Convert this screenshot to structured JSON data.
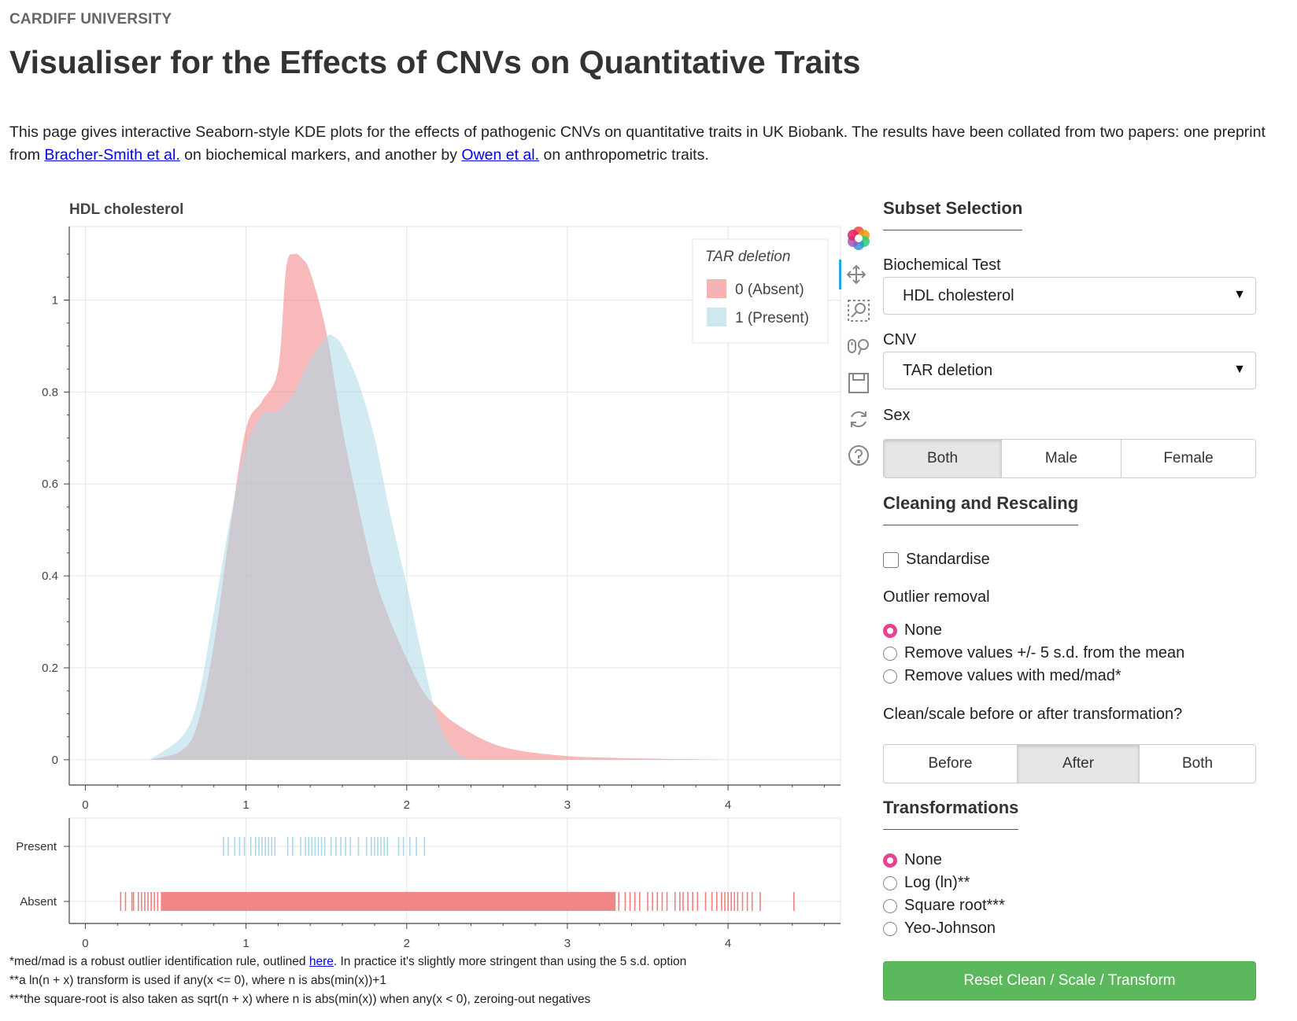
{
  "header": {
    "org": "CARDIFF UNIVERSITY",
    "title": "Visualiser for the Effects of CNVs on Quantitative Traits"
  },
  "intro": {
    "text1": "This page gives interactive Seaborn-style KDE plots for the effects of pathogenic CNVs on quantitative traits in UK Biobank. The results have been collated from two papers: one preprint from ",
    "link1": "Bracher-Smith et al.",
    "text2": " on biochemical markers, and another by ",
    "link2": "Owen et al.",
    "text3": " on anthropometric traits."
  },
  "chart_data": [
    {
      "type": "area",
      "title": "HDL cholesterol",
      "xlim": [
        -0.1,
        4.7
      ],
      "ylim": [
        -0.055,
        1.16
      ],
      "x_ticks": [
        "0",
        "1",
        "2",
        "3",
        "4"
      ],
      "y_ticks": [
        "0",
        "0.2",
        "0.4",
        "0.6",
        "0.8",
        "1"
      ],
      "grid": true,
      "legend": {
        "title": "TAR deletion",
        "placement": "top-right",
        "entries": [
          "0 (Absent)",
          "1 (Present)"
        ]
      },
      "series": [
        {
          "name": "0 (Absent)",
          "color": "#f08080",
          "x": [
            0.4,
            0.6,
            0.7,
            0.8,
            0.9,
            1.0,
            1.1,
            1.2,
            1.25,
            1.3,
            1.35,
            1.4,
            1.5,
            1.6,
            1.7,
            1.8,
            1.9,
            2.0,
            2.1,
            2.2,
            2.3,
            2.5,
            2.7,
            3.0,
            3.3,
            3.6,
            4.0
          ],
          "y": [
            0.0,
            0.02,
            0.08,
            0.25,
            0.5,
            0.72,
            0.78,
            0.85,
            1.07,
            1.1,
            1.09,
            1.06,
            0.93,
            0.72,
            0.55,
            0.4,
            0.3,
            0.22,
            0.15,
            0.11,
            0.08,
            0.04,
            0.02,
            0.008,
            0.004,
            0.002,
            0.0
          ]
        },
        {
          "name": "1 (Present)",
          "color": "#add8e6",
          "x": [
            0.4,
            0.6,
            0.7,
            0.8,
            0.9,
            1.0,
            1.1,
            1.2,
            1.3,
            1.4,
            1.5,
            1.55,
            1.6,
            1.7,
            1.8,
            1.9,
            2.0,
            2.1,
            2.2,
            2.3,
            2.4
          ],
          "y": [
            0.0,
            0.05,
            0.13,
            0.32,
            0.52,
            0.68,
            0.75,
            0.76,
            0.8,
            0.87,
            0.92,
            0.92,
            0.9,
            0.82,
            0.7,
            0.53,
            0.38,
            0.22,
            0.08,
            0.02,
            0.0
          ]
        }
      ]
    },
    {
      "type": "scatter",
      "subtype": "rug",
      "xlim": [
        -0.1,
        4.7
      ],
      "x_ticks": [
        "0",
        "1",
        "2",
        "3",
        "4"
      ],
      "categories": [
        "Present",
        "Absent"
      ],
      "series": [
        {
          "name": "Present",
          "color": "#add8e6",
          "x": [
            0.86,
            0.89,
            0.93,
            0.96,
            0.99,
            1.03,
            1.06,
            1.08,
            1.1,
            1.12,
            1.14,
            1.16,
            1.18,
            1.26,
            1.29,
            1.34,
            1.37,
            1.39,
            1.41,
            1.43,
            1.45,
            1.47,
            1.49,
            1.53,
            1.56,
            1.59,
            1.62,
            1.65,
            1.7,
            1.75,
            1.78,
            1.8,
            1.82,
            1.84,
            1.86,
            1.88,
            1.95,
            1.98,
            2.02,
            2.06,
            2.11
          ]
        },
        {
          "name": "Absent",
          "color": "#f08080",
          "x_band": [
            0.47,
            3.3
          ],
          "x": [
            0.22,
            0.25,
            0.29,
            0.3,
            0.33,
            0.35,
            0.37,
            0.39,
            0.41,
            0.43,
            0.45,
            3.32,
            3.36,
            3.39,
            3.42,
            3.45,
            3.5,
            3.53,
            3.56,
            3.59,
            3.62,
            3.67,
            3.7,
            3.72,
            3.75,
            3.78,
            3.81,
            3.86,
            3.9,
            3.93,
            3.96,
            3.98,
            4.0,
            4.02,
            4.04,
            4.06,
            4.09,
            4.12,
            4.15,
            4.2,
            4.41
          ]
        }
      ]
    }
  ],
  "toolbar": {
    "icons": [
      "bokeh-logo-icon",
      "pan-icon",
      "box-zoom-icon",
      "wheel-zoom-icon",
      "save-icon",
      "reset-icon",
      "help-icon"
    ]
  },
  "sidebar": {
    "subset_title": "Subset Selection",
    "biochem_label": "Biochemical Test",
    "biochem_value": "HDL cholesterol",
    "cnv_label": "CNV",
    "cnv_value": "TAR deletion",
    "sex_label": "Sex",
    "sex_options": [
      "Both",
      "Male",
      "Female"
    ],
    "sex_selected": "Both",
    "cleaning_title": "Cleaning and Rescaling",
    "standardise_label": "Standardise",
    "standardise_checked": false,
    "outlier_label": "Outlier removal",
    "outlier_options": [
      "None",
      "Remove values +/- 5 s.d. from the mean",
      "Remove values with med/mad*"
    ],
    "outlier_selected": "None",
    "order_label": "Clean/scale before or after transformation?",
    "order_options": [
      "Before",
      "After",
      "Both"
    ],
    "order_selected": "After",
    "transform_title": "Transformations",
    "transform_options": [
      "None",
      "Log (ln)**",
      "Square root***",
      "Yeo-Johnson"
    ],
    "transform_selected": "None",
    "reset_label": "Reset Clean / Scale / Transform"
  },
  "footnotes": {
    "note1_pre": "*med/mad is a robust outlier identification rule, outlined ",
    "note1_link": "here",
    "note1_post": ". In practice it's slightly more stringent than using the 5 s.d. option",
    "note2": "**a ln(n + x) transform is used if any(x <= 0), where n is abs(min(x))+1",
    "note3": "***the square-root is also taken as sqrt(n + x) where n is abs(min(x)) when any(x < 0), zeroing-out negatives"
  },
  "colors": {
    "absent": "#f08080",
    "present": "#add8e6",
    "radio_accent": "#e84393",
    "reset_button": "#5cb85c"
  }
}
